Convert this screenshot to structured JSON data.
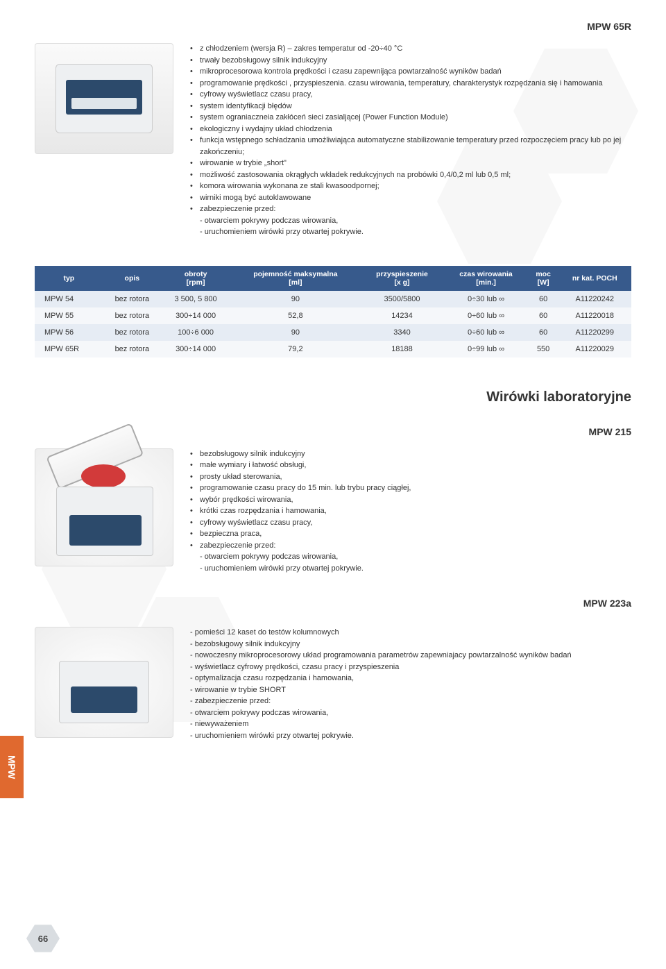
{
  "title1": "MPW 65R",
  "bullets1": [
    "z chłodzeniem (wersja R) – zakres temperatur od -20÷40 °C",
    "trwały bezobsługowy silnik indukcyjny",
    "mikroprocesorowa kontrola prędkości i czasu zapewnijąca powtarzalność wyników badań",
    "programowanie prędkości , przyspieszenia. czasu wirowania, temperatury, charakterystyk rozpędzania się i hamowania",
    "cyfrowy wyświetlacz czasu pracy,",
    "system identyfikacji błędów",
    "system ograniaczneia zakłóceń sieci zasialjącej (Power Function Module)",
    "ekologiczny i wydajny układ chłodzenia",
    "funkcja wstępnego schładzania umożliwiająca automatyczne stabilizowanie temperatury przed rozpoczęciem pracy lub po jej zakończeniu;",
    "wirowanie w trybie „short\"",
    "możliwość zastosowania okrągłych wkładek redukcyjnych na probówki 0,4/0,2 ml lub 0,5 ml;",
    "komora wirowania wykonana ze stali kwasoodpornej;",
    "wirniki mogą być autoklawowane",
    "zabezpieczenie przed:"
  ],
  "sub1": [
    "- otwarciem pokrywy podczas wirowania,",
    "- uruchomieniem wirówki przy otwartej pokrywie."
  ],
  "table": {
    "headers": [
      "typ",
      "opis",
      "obroty [rpm]",
      "pojemność maksymalna [ml]",
      "przyspieszenie [x g]",
      "czas wirowania [min.]",
      "moc [W]",
      "nr kat. POCH"
    ],
    "rows": [
      [
        "MPW 54",
        "bez rotora",
        "3 500, 5 800",
        "90",
        "3500/5800",
        "0÷30 lub ∞",
        "60",
        "A11220242"
      ],
      [
        "MPW 55",
        "bez rotora",
        "300÷14 000",
        "52,8",
        "14234",
        "0÷60 lub ∞",
        "60",
        "A11220018"
      ],
      [
        "MPW 56",
        "bez rotora",
        "100÷6 000",
        "90",
        "3340",
        "0÷60 lub ∞",
        "60",
        "A11220299"
      ],
      [
        "MPW 65R",
        "bez rotora",
        "300÷14 000",
        "79,2",
        "18188",
        "0÷99 lub ∞",
        "550",
        "A11220029"
      ]
    ],
    "header_bg": "#375a8c",
    "row_odd_bg": "#e6ecf4",
    "row_even_bg": "#f5f7fa"
  },
  "section_title": "Wirówki laboratoryjne",
  "title2": "MPW 215",
  "bullets2": [
    "bezobsługowy silnik indukcyjny",
    "małe wymiary i łatwość obsługi,",
    "prosty układ sterowania,",
    "programowanie czasu pracy do 15 min. lub trybu pracy ciągłej,",
    "wybór prędkości wirowania,",
    "krótki czas rozpędzania i hamowania,",
    "cyfrowy wyświetlacz czasu pracy,",
    "bezpieczna praca,",
    "zabezpieczenie przed:"
  ],
  "sub2": [
    "- otwarciem pokrywy podczas wirowania,",
    "- uruchomieniem wirówki przy otwartej pokrywie."
  ],
  "title3": "MPW 223a",
  "dash3": [
    "- pomieści 12 kaset do testów kolumnowych",
    "- bezobsługowy silnik indukcyjny",
    "- nowoczesny mikroprocesorowy układ programowania parametrów zapewniajacy powtarzalność wyników badań",
    "- wyświetlacz cyfrowy prędkości, czasu pracy i przyspieszenia",
    "- optymalizacja czasu rozpędzania i hamowania,",
    "- wirowanie w trybie SHORT",
    "- zabezpieczenie przed:",
    "- otwarciem pokrywy podczas wirowania,",
    "- niewyważeniem",
    "- uruchomieniem wirówki przy otwartej pokrywie."
  ],
  "side_tab": "MPW",
  "page_number": "66",
  "colors": {
    "accent_orange": "#e0692f",
    "table_header": "#375a8c",
    "hex_bg": "#f7f7f7",
    "page_hex": "#d9dde1"
  }
}
